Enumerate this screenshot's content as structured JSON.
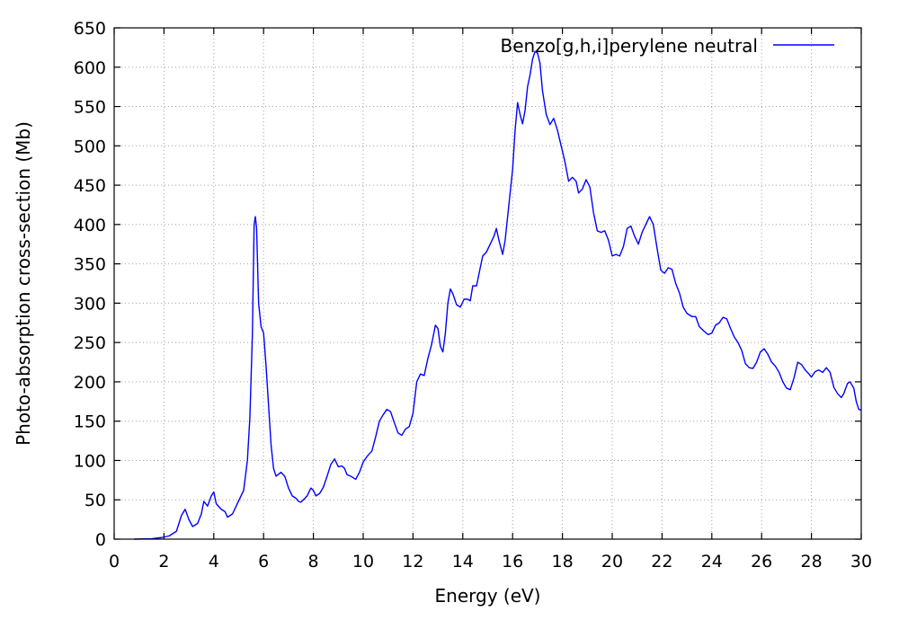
{
  "chart_data": {
    "type": "line",
    "title": "",
    "xlabel": "Energy (eV)",
    "ylabel": "Photo-absorption cross-section (Mb)",
    "xlim": [
      0,
      30
    ],
    "ylim": [
      0,
      650
    ],
    "x_ticks": [
      0,
      2,
      4,
      6,
      8,
      10,
      12,
      14,
      16,
      18,
      20,
      22,
      24,
      26,
      28,
      30
    ],
    "x_tick_labels": [
      "0",
      "2",
      "4",
      "6",
      "8",
      "10",
      "12",
      "14",
      "16",
      "18",
      "20",
      "22",
      "24",
      "26",
      "28",
      "30"
    ],
    "y_ticks": [
      0,
      50,
      100,
      150,
      200,
      250,
      300,
      350,
      400,
      450,
      500,
      550,
      600,
      650
    ],
    "y_tick_labels": [
      "0",
      "50",
      "100",
      "150",
      "200",
      "250",
      "300",
      "350",
      "400",
      "450",
      "500",
      "550",
      "600",
      "650"
    ],
    "grid": true,
    "legend_position": "top-right",
    "series": [
      {
        "name": "Benzo[g,h,i]perylene neutral",
        "color": "#0000ff",
        "points": [
          [
            0.8,
            0
          ],
          [
            1.5,
            0.5
          ],
          [
            1.9,
            2
          ],
          [
            2.2,
            4
          ],
          [
            2.5,
            10
          ],
          [
            2.7,
            30
          ],
          [
            2.85,
            38
          ],
          [
            3.0,
            25
          ],
          [
            3.15,
            16
          ],
          [
            3.35,
            20
          ],
          [
            3.5,
            32
          ],
          [
            3.6,
            48
          ],
          [
            3.75,
            42
          ],
          [
            3.9,
            55
          ],
          [
            4.0,
            60
          ],
          [
            4.1,
            45
          ],
          [
            4.3,
            38
          ],
          [
            4.45,
            35
          ],
          [
            4.55,
            28
          ],
          [
            4.75,
            32
          ],
          [
            4.9,
            42
          ],
          [
            5.05,
            52
          ],
          [
            5.2,
            62
          ],
          [
            5.35,
            100
          ],
          [
            5.45,
            155
          ],
          [
            5.55,
            260
          ],
          [
            5.62,
            400
          ],
          [
            5.67,
            410
          ],
          [
            5.72,
            395
          ],
          [
            5.8,
            300
          ],
          [
            5.9,
            270
          ],
          [
            6.0,
            262
          ],
          [
            6.1,
            220
          ],
          [
            6.2,
            170
          ],
          [
            6.3,
            120
          ],
          [
            6.4,
            90
          ],
          [
            6.5,
            80
          ],
          [
            6.7,
            85
          ],
          [
            6.85,
            80
          ],
          [
            7.0,
            65
          ],
          [
            7.15,
            55
          ],
          [
            7.3,
            52
          ],
          [
            7.4,
            48
          ],
          [
            7.5,
            47
          ],
          [
            7.6,
            50
          ],
          [
            7.75,
            55
          ],
          [
            7.9,
            65
          ],
          [
            8.0,
            62
          ],
          [
            8.1,
            55
          ],
          [
            8.25,
            58
          ],
          [
            8.4,
            66
          ],
          [
            8.55,
            80
          ],
          [
            8.7,
            95
          ],
          [
            8.85,
            102
          ],
          [
            9.0,
            92
          ],
          [
            9.15,
            93
          ],
          [
            9.25,
            90
          ],
          [
            9.35,
            82
          ],
          [
            9.5,
            80
          ],
          [
            9.6,
            78
          ],
          [
            9.7,
            76
          ],
          [
            9.85,
            85
          ],
          [
            10.0,
            98
          ],
          [
            10.15,
            105
          ],
          [
            10.35,
            112
          ],
          [
            10.5,
            130
          ],
          [
            10.65,
            150
          ],
          [
            10.8,
            158
          ],
          [
            10.95,
            165
          ],
          [
            11.1,
            162
          ],
          [
            11.25,
            148
          ],
          [
            11.4,
            135
          ],
          [
            11.55,
            132
          ],
          [
            11.7,
            140
          ],
          [
            11.85,
            143
          ],
          [
            12.0,
            160
          ],
          [
            12.15,
            200
          ],
          [
            12.3,
            210
          ],
          [
            12.45,
            208
          ],
          [
            12.6,
            230
          ],
          [
            12.75,
            248
          ],
          [
            12.9,
            272
          ],
          [
            13.0,
            268
          ],
          [
            13.1,
            245
          ],
          [
            13.2,
            238
          ],
          [
            13.3,
            262
          ],
          [
            13.4,
            300
          ],
          [
            13.5,
            318
          ],
          [
            13.6,
            312
          ],
          [
            13.75,
            298
          ],
          [
            13.9,
            295
          ],
          [
            14.05,
            305
          ],
          [
            14.2,
            305
          ],
          [
            14.3,
            303
          ],
          [
            14.4,
            322
          ],
          [
            14.55,
            322
          ],
          [
            14.7,
            345
          ],
          [
            14.8,
            360
          ],
          [
            14.95,
            365
          ],
          [
            15.1,
            375
          ],
          [
            15.25,
            385
          ],
          [
            15.35,
            395
          ],
          [
            15.45,
            380
          ],
          [
            15.6,
            362
          ],
          [
            15.7,
            380
          ],
          [
            15.85,
            425
          ],
          [
            16.0,
            470
          ],
          [
            16.1,
            520
          ],
          [
            16.2,
            555
          ],
          [
            16.3,
            540
          ],
          [
            16.4,
            528
          ],
          [
            16.5,
            545
          ],
          [
            16.6,
            575
          ],
          [
            16.7,
            590
          ],
          [
            16.8,
            610
          ],
          [
            16.9,
            620
          ],
          [
            17.0,
            618
          ],
          [
            17.1,
            605
          ],
          [
            17.2,
            570
          ],
          [
            17.35,
            540
          ],
          [
            17.5,
            527
          ],
          [
            17.65,
            535
          ],
          [
            17.8,
            520
          ],
          [
            17.95,
            500
          ],
          [
            18.1,
            480
          ],
          [
            18.25,
            455
          ],
          [
            18.4,
            460
          ],
          [
            18.55,
            455
          ],
          [
            18.65,
            440
          ],
          [
            18.8,
            445
          ],
          [
            18.95,
            457
          ],
          [
            19.1,
            448
          ],
          [
            19.25,
            415
          ],
          [
            19.4,
            392
          ],
          [
            19.55,
            390
          ],
          [
            19.7,
            392
          ],
          [
            19.85,
            380
          ],
          [
            20.0,
            360
          ],
          [
            20.15,
            362
          ],
          [
            20.3,
            360
          ],
          [
            20.45,
            372
          ],
          [
            20.6,
            395
          ],
          [
            20.75,
            398
          ],
          [
            20.9,
            385
          ],
          [
            21.05,
            375
          ],
          [
            21.2,
            390
          ],
          [
            21.35,
            400
          ],
          [
            21.5,
            410
          ],
          [
            21.65,
            400
          ],
          [
            21.8,
            370
          ],
          [
            21.95,
            342
          ],
          [
            22.1,
            338
          ],
          [
            22.25,
            345
          ],
          [
            22.4,
            343
          ],
          [
            22.55,
            325
          ],
          [
            22.7,
            313
          ],
          [
            22.85,
            295
          ],
          [
            23.0,
            287
          ],
          [
            23.2,
            283
          ],
          [
            23.35,
            283
          ],
          [
            23.5,
            270
          ],
          [
            23.7,
            264
          ],
          [
            23.85,
            260
          ],
          [
            24.0,
            262
          ],
          [
            24.15,
            272
          ],
          [
            24.3,
            275
          ],
          [
            24.45,
            282
          ],
          [
            24.6,
            280
          ],
          [
            24.75,
            268
          ],
          [
            24.9,
            257
          ],
          [
            25.05,
            250
          ],
          [
            25.2,
            240
          ],
          [
            25.35,
            223
          ],
          [
            25.5,
            218
          ],
          [
            25.65,
            217
          ],
          [
            25.8,
            225
          ],
          [
            25.95,
            238
          ],
          [
            26.1,
            242
          ],
          [
            26.25,
            235
          ],
          [
            26.4,
            225
          ],
          [
            26.55,
            220
          ],
          [
            26.7,
            212
          ],
          [
            26.85,
            200
          ],
          [
            27.0,
            192
          ],
          [
            27.15,
            190
          ],
          [
            27.3,
            205
          ],
          [
            27.45,
            225
          ],
          [
            27.6,
            222
          ],
          [
            27.75,
            215
          ],
          [
            27.9,
            210
          ],
          [
            28.0,
            206
          ],
          [
            28.15,
            213
          ],
          [
            28.3,
            215
          ],
          [
            28.45,
            212
          ],
          [
            28.6,
            218
          ],
          [
            28.75,
            212
          ],
          [
            28.9,
            193
          ],
          [
            29.05,
            185
          ],
          [
            29.2,
            180
          ],
          [
            29.3,
            185
          ],
          [
            29.45,
            198
          ],
          [
            29.55,
            200
          ],
          [
            29.7,
            192
          ],
          [
            29.8,
            175
          ],
          [
            29.9,
            165
          ],
          [
            30.0,
            164
          ]
        ]
      }
    ]
  }
}
